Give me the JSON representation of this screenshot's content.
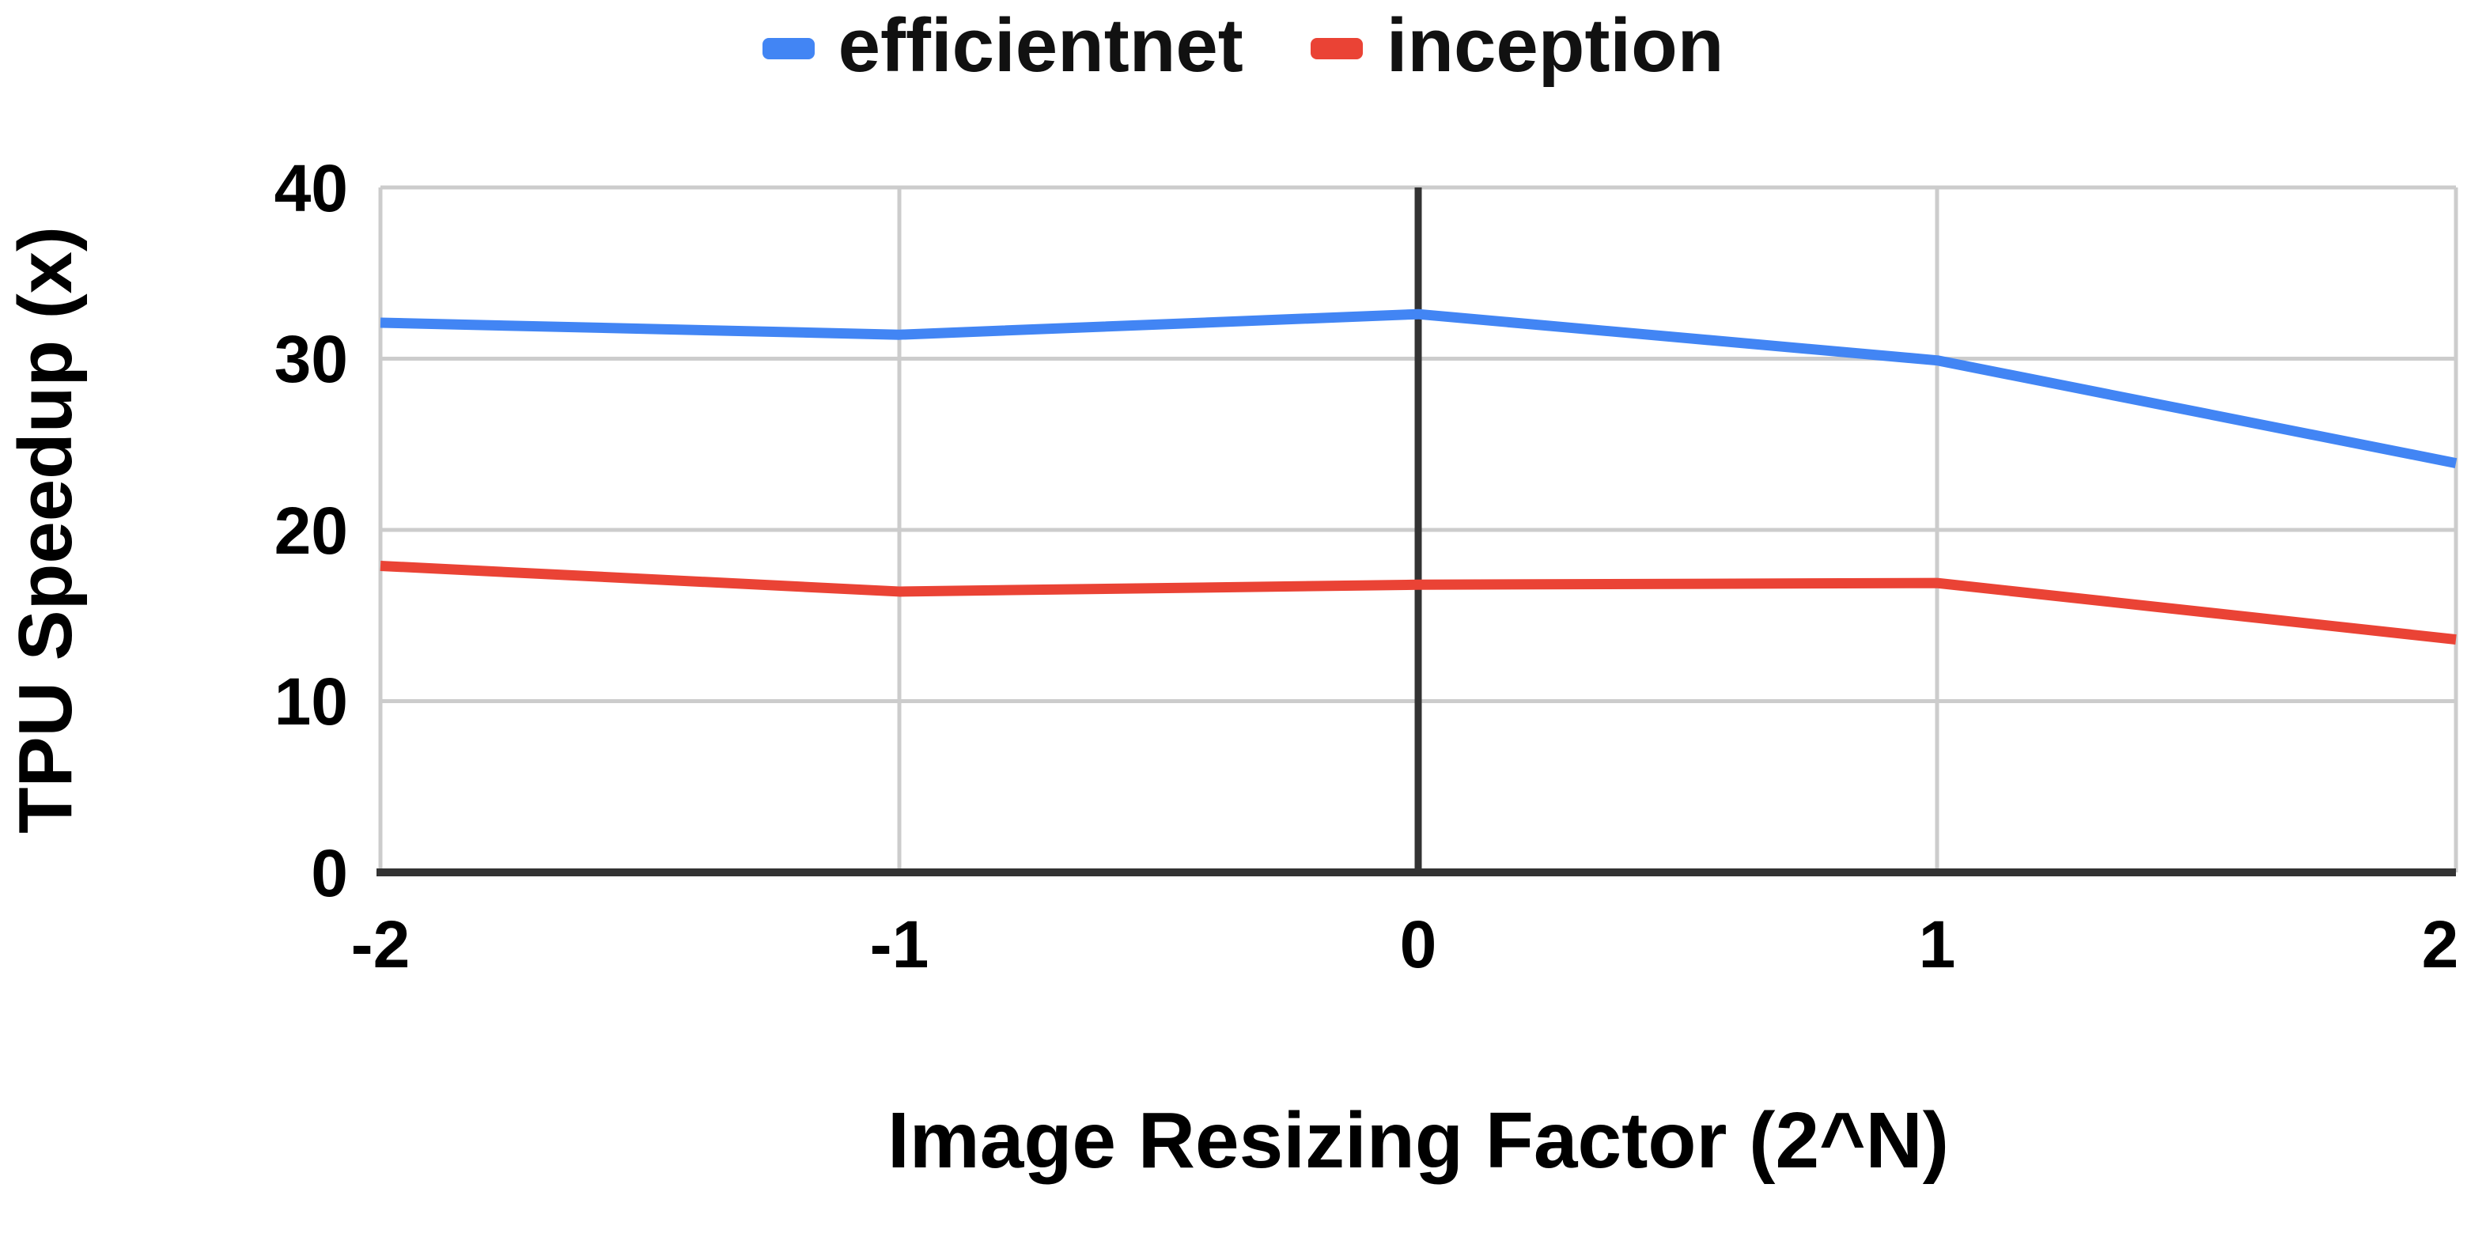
{
  "chart_data": {
    "type": "line",
    "x": [
      -2,
      -1,
      0,
      1,
      2
    ],
    "series": [
      {
        "name": "efficientnet",
        "color": "#4285F4",
        "values": [
          32.1,
          31.4,
          32.6,
          29.9,
          23.9
        ]
      },
      {
        "name": "inception",
        "color": "#EA4335",
        "values": [
          17.9,
          16.4,
          16.8,
          16.9,
          13.6
        ]
      }
    ],
    "title": "",
    "xlabel": "Image Resizing Factor (2^N)",
    "ylabel": "TPU Speedup (x)",
    "xlim": [
      -2,
      2
    ],
    "ylim": [
      0,
      40
    ],
    "xticks": [
      -2,
      -1,
      0,
      1,
      2
    ],
    "xtick_labels": [
      "-2",
      "-1",
      "0",
      "1",
      "2"
    ],
    "yticks": [
      0,
      10,
      20,
      30,
      40
    ],
    "ytick_labels": [
      "0",
      "10",
      "20",
      "30",
      "40"
    ],
    "grid": true,
    "legend_position": "top",
    "colors": {
      "gridline": "#cccccc",
      "axis": "#333333",
      "zero_line": "#333333",
      "text": "#000000",
      "background": "#ffffff"
    }
  }
}
